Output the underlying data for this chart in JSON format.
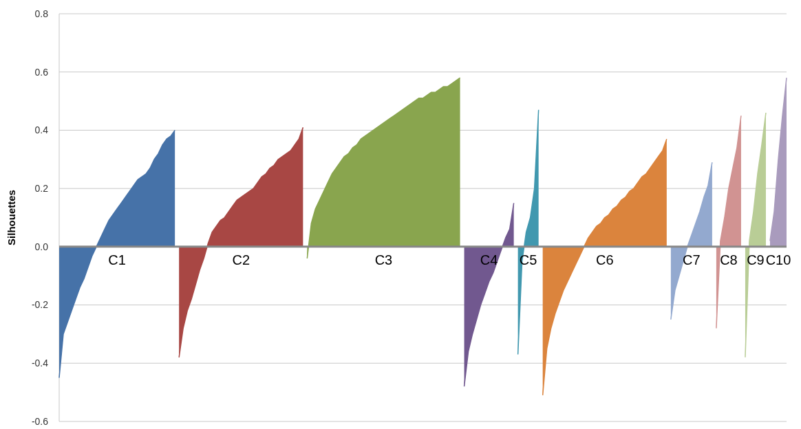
{
  "chart_data": {
    "type": "area",
    "ylabel": "Silhouettes",
    "ylim": [
      -0.6,
      0.8
    ],
    "yticks": [
      -0.6,
      -0.4,
      -0.2,
      {
        "value": 0,
        "label": "0.0"
      },
      0.2,
      0.4,
      0.6,
      0.8
    ],
    "grid": "y",
    "tick_labels": "y",
    "legend": false,
    "categories": [
      null,
      null,
      null,
      null,
      null,
      null,
      null,
      null,
      null,
      null,
      null,
      null,
      null,
      null,
      null,
      null,
      null,
      null,
      null,
      null,
      null,
      null,
      null,
      null,
      null,
      null,
      null,
      null,
      null,
      null,
      null,
      null,
      null,
      null,
      null,
      null,
      null,
      null,
      null,
      null,
      null,
      null,
      null,
      null,
      null,
      null,
      null,
      null,
      null,
      null,
      null,
      null,
      null,
      null,
      null,
      null,
      null,
      null,
      null,
      null,
      null,
      null,
      null,
      null,
      null,
      null,
      null,
      null,
      null,
      null,
      null,
      null,
      null,
      null,
      null,
      null,
      null,
      null,
      null,
      null,
      null,
      null,
      null,
      null,
      null,
      null,
      null,
      null,
      null,
      null,
      null,
      null,
      null,
      null,
      null,
      null,
      null,
      null,
      null,
      null,
      null,
      null,
      null,
      null,
      null,
      null,
      null,
      null,
      null,
      null,
      null,
      null,
      null,
      null,
      null,
      null,
      null,
      null,
      null,
      null,
      null,
      null,
      null,
      null,
      null,
      null,
      null,
      null,
      null,
      null,
      null,
      null,
      null,
      null,
      null,
      null,
      null,
      null,
      null,
      null,
      null,
      null,
      null,
      null,
      null,
      null,
      null,
      null,
      null,
      null,
      null,
      null,
      null,
      null,
      null,
      null,
      null,
      null,
      null,
      null,
      null,
      null,
      null,
      null,
      null,
      null,
      null,
      null,
      null,
      null,
      null,
      null,
      null,
      null,
      null,
      null,
      null
    ],
    "series": [
      {
        "name": "C1",
        "color": "#4672a8",
        "values": [
          -0.45,
          -0.3,
          -0.26,
          -0.22,
          -0.18,
          -0.14,
          -0.11,
          -0.07,
          -0.03,
          0.0,
          0.03,
          0.06,
          0.09,
          0.11,
          0.13,
          0.15,
          0.17,
          0.19,
          0.21,
          0.23,
          0.24,
          0.25,
          0.27,
          0.3,
          0.32,
          0.35,
          0.37,
          0.38,
          0.4,
          null,
          null,
          null,
          null,
          null,
          null,
          null,
          null,
          null,
          null,
          null,
          null,
          null,
          null,
          null,
          null,
          null,
          null,
          null,
          null,
          null,
          null,
          null,
          null,
          null,
          null,
          null,
          null,
          null,
          null,
          null,
          null,
          null,
          null,
          null,
          null,
          null,
          null,
          null,
          null,
          null,
          null,
          null,
          null,
          null,
          null,
          null,
          null,
          null,
          null,
          null,
          null,
          null,
          null,
          null,
          null,
          null,
          null,
          null,
          null,
          null,
          null,
          null,
          null,
          null,
          null,
          null,
          null,
          null,
          null,
          null,
          null,
          null,
          null,
          null,
          null,
          null,
          null,
          null,
          null,
          null,
          null,
          null,
          null,
          null,
          null,
          null,
          null,
          null,
          null,
          null,
          null,
          null,
          null,
          null,
          null,
          null,
          null,
          null,
          null,
          null,
          null,
          null,
          null,
          null,
          null,
          null,
          null,
          null,
          null,
          null,
          null,
          null,
          null,
          null,
          null,
          null,
          null,
          null,
          null,
          null,
          null,
          null,
          null,
          null,
          null,
          null,
          null,
          null,
          null,
          null,
          null,
          null,
          null,
          null,
          null,
          null,
          null,
          null,
          null,
          null,
          null,
          null,
          null,
          null,
          null,
          null,
          null
        ]
      },
      {
        "name": "C2",
        "color": "#a84744",
        "values": [
          null,
          null,
          null,
          null,
          null,
          null,
          null,
          null,
          null,
          null,
          null,
          null,
          null,
          null,
          null,
          null,
          null,
          null,
          null,
          null,
          null,
          null,
          null,
          null,
          null,
          null,
          null,
          null,
          null,
          -0.38,
          -0.28,
          -0.22,
          -0.18,
          -0.13,
          -0.08,
          -0.04,
          0.01,
          0.05,
          0.07,
          0.09,
          0.1,
          0.12,
          0.14,
          0.16,
          0.17,
          0.18,
          0.19,
          0.2,
          0.22,
          0.24,
          0.25,
          0.27,
          0.28,
          0.3,
          0.31,
          0.32,
          0.33,
          0.35,
          0.37,
          0.41,
          null,
          null,
          null,
          null,
          null,
          null,
          null,
          null,
          null,
          null,
          null,
          null,
          null,
          null,
          null,
          null,
          null,
          null,
          null,
          null,
          null,
          null,
          null,
          null,
          null,
          null,
          null,
          null,
          null,
          null,
          null,
          null,
          null,
          null,
          null,
          null,
          null,
          null,
          null,
          null,
          null,
          null,
          null,
          null,
          null,
          null,
          null,
          null,
          null,
          null,
          null,
          null,
          null,
          null,
          null,
          null,
          null,
          null,
          null,
          null,
          null,
          null,
          null,
          null,
          null,
          null,
          null,
          null,
          null,
          null,
          null,
          null,
          null,
          null,
          null,
          null,
          null,
          null,
          null,
          null,
          null,
          null,
          null,
          null,
          null,
          null,
          null,
          null,
          null,
          null,
          null,
          null,
          null,
          null,
          null,
          null,
          null,
          null,
          null,
          null,
          null,
          null,
          null,
          null,
          null,
          null,
          null,
          null,
          null,
          null,
          null,
          null,
          null,
          null,
          null,
          null,
          null
        ]
      },
      {
        "name": "C3",
        "color": "#89a54e",
        "values": [
          null,
          null,
          null,
          null,
          null,
          null,
          null,
          null,
          null,
          null,
          null,
          null,
          null,
          null,
          null,
          null,
          null,
          null,
          null,
          null,
          null,
          null,
          null,
          null,
          null,
          null,
          null,
          null,
          null,
          null,
          null,
          null,
          null,
          null,
          null,
          null,
          null,
          null,
          null,
          null,
          null,
          null,
          null,
          null,
          null,
          null,
          null,
          null,
          null,
          null,
          null,
          null,
          null,
          null,
          null,
          null,
          null,
          null,
          null,
          null,
          -0.04,
          0.08,
          0.13,
          0.16,
          0.19,
          0.22,
          0.25,
          0.27,
          0.29,
          0.31,
          0.32,
          0.34,
          0.35,
          0.37,
          0.38,
          0.39,
          0.4,
          0.41,
          0.42,
          0.43,
          0.44,
          0.45,
          0.46,
          0.47,
          0.48,
          0.49,
          0.5,
          0.51,
          0.51,
          0.52,
          0.53,
          0.53,
          0.54,
          0.55,
          0.55,
          0.56,
          0.57,
          0.58,
          null,
          null,
          null,
          null,
          null,
          null,
          null,
          null,
          null,
          null,
          null,
          null,
          null,
          null,
          null,
          null,
          null,
          null,
          null,
          null,
          null,
          null,
          null,
          null,
          null,
          null,
          null,
          null,
          null,
          null,
          null,
          null,
          null,
          null,
          null,
          null,
          null,
          null,
          null,
          null,
          null,
          null,
          null,
          null,
          null,
          null,
          null,
          null,
          null,
          null,
          null,
          null,
          null,
          null,
          null,
          null,
          null,
          null,
          null,
          null,
          null,
          null,
          null,
          null,
          null,
          null,
          null,
          null,
          null,
          null,
          null,
          null,
          null,
          null,
          null,
          null,
          null,
          null,
          null
        ]
      },
      {
        "name": "C4",
        "color": "#71588f",
        "values": [
          null,
          null,
          null,
          null,
          null,
          null,
          null,
          null,
          null,
          null,
          null,
          null,
          null,
          null,
          null,
          null,
          null,
          null,
          null,
          null,
          null,
          null,
          null,
          null,
          null,
          null,
          null,
          null,
          null,
          null,
          null,
          null,
          null,
          null,
          null,
          null,
          null,
          null,
          null,
          null,
          null,
          null,
          null,
          null,
          null,
          null,
          null,
          null,
          null,
          null,
          null,
          null,
          null,
          null,
          null,
          null,
          null,
          null,
          null,
          null,
          null,
          null,
          null,
          null,
          null,
          null,
          null,
          null,
          null,
          null,
          null,
          null,
          null,
          null,
          null,
          null,
          null,
          null,
          null,
          null,
          null,
          null,
          null,
          null,
          null,
          null,
          null,
          null,
          null,
          null,
          null,
          null,
          null,
          null,
          null,
          null,
          null,
          null,
          -0.48,
          -0.36,
          -0.3,
          -0.25,
          -0.2,
          -0.16,
          -0.12,
          -0.09,
          -0.05,
          -0.01,
          0.03,
          0.06,
          0.15,
          null,
          null,
          null,
          null,
          null,
          null,
          null,
          null,
          null,
          null,
          null,
          null,
          null,
          null,
          null,
          null,
          null,
          null,
          null,
          null,
          null,
          null,
          null,
          null,
          null,
          null,
          null,
          null,
          null,
          null,
          null,
          null,
          null,
          null,
          null,
          null,
          null,
          null,
          null,
          null,
          null,
          null,
          null,
          null,
          null,
          null,
          null,
          null,
          null,
          null,
          null,
          null,
          null,
          null,
          null,
          null,
          null,
          null,
          null,
          null,
          null,
          null,
          null,
          null,
          null,
          null
        ]
      },
      {
        "name": "C5",
        "color": "#4198af",
        "values": [
          null,
          null,
          null,
          null,
          null,
          null,
          null,
          null,
          null,
          null,
          null,
          null,
          null,
          null,
          null,
          null,
          null,
          null,
          null,
          null,
          null,
          null,
          null,
          null,
          null,
          null,
          null,
          null,
          null,
          null,
          null,
          null,
          null,
          null,
          null,
          null,
          null,
          null,
          null,
          null,
          null,
          null,
          null,
          null,
          null,
          null,
          null,
          null,
          null,
          null,
          null,
          null,
          null,
          null,
          null,
          null,
          null,
          null,
          null,
          null,
          null,
          null,
          null,
          null,
          null,
          null,
          null,
          null,
          null,
          null,
          null,
          null,
          null,
          null,
          null,
          null,
          null,
          null,
          null,
          null,
          null,
          null,
          null,
          null,
          null,
          null,
          null,
          null,
          null,
          null,
          null,
          null,
          null,
          null,
          null,
          null,
          null,
          null,
          null,
          null,
          null,
          null,
          null,
          null,
          null,
          null,
          null,
          null,
          null,
          null,
          null,
          -0.37,
          -0.05,
          0.05,
          0.1,
          0.2,
          0.47,
          null,
          null,
          null,
          null,
          null,
          null,
          null,
          null,
          null,
          null,
          null,
          null,
          null,
          null,
          null,
          null,
          null,
          null,
          null,
          null,
          null,
          null,
          null,
          null,
          null,
          null,
          null,
          null,
          null,
          null,
          null,
          null,
          null,
          null,
          null,
          null,
          null,
          null,
          null,
          null,
          null,
          null,
          null,
          null,
          null,
          null,
          null,
          null,
          null,
          null,
          null,
          null,
          null,
          null,
          null,
          null,
          null,
          null,
          null,
          null
        ]
      },
      {
        "name": "C6",
        "color": "#db843d",
        "values": [
          null,
          null,
          null,
          null,
          null,
          null,
          null,
          null,
          null,
          null,
          null,
          null,
          null,
          null,
          null,
          null,
          null,
          null,
          null,
          null,
          null,
          null,
          null,
          null,
          null,
          null,
          null,
          null,
          null,
          null,
          null,
          null,
          null,
          null,
          null,
          null,
          null,
          null,
          null,
          null,
          null,
          null,
          null,
          null,
          null,
          null,
          null,
          null,
          null,
          null,
          null,
          null,
          null,
          null,
          null,
          null,
          null,
          null,
          null,
          null,
          null,
          null,
          null,
          null,
          null,
          null,
          null,
          null,
          null,
          null,
          null,
          null,
          null,
          null,
          null,
          null,
          null,
          null,
          null,
          null,
          null,
          null,
          null,
          null,
          null,
          null,
          null,
          null,
          null,
          null,
          null,
          null,
          null,
          null,
          null,
          null,
          null,
          null,
          null,
          null,
          null,
          null,
          null,
          null,
          null,
          null,
          null,
          null,
          null,
          null,
          null,
          null,
          null,
          null,
          null,
          null,
          null,
          -0.51,
          -0.35,
          -0.28,
          -0.23,
          -0.19,
          -0.15,
          -0.12,
          -0.09,
          -0.06,
          -0.03,
          0.0,
          0.03,
          0.05,
          0.07,
          0.08,
          0.1,
          0.11,
          0.13,
          0.14,
          0.16,
          0.17,
          0.19,
          0.2,
          0.22,
          0.24,
          0.25,
          0.27,
          0.29,
          0.31,
          0.33,
          0.37,
          null,
          null,
          null,
          null,
          null,
          null,
          null,
          null,
          null,
          null,
          null,
          null,
          null,
          null,
          null,
          null,
          null,
          null,
          null,
          null,
          null,
          null,
          null,
          null,
          null,
          null,
          null,
          null,
          null
        ]
      },
      {
        "name": "C7",
        "color": "#93a9cf",
        "values": [
          null,
          null,
          null,
          null,
          null,
          null,
          null,
          null,
          null,
          null,
          null,
          null,
          null,
          null,
          null,
          null,
          null,
          null,
          null,
          null,
          null,
          null,
          null,
          null,
          null,
          null,
          null,
          null,
          null,
          null,
          null,
          null,
          null,
          null,
          null,
          null,
          null,
          null,
          null,
          null,
          null,
          null,
          null,
          null,
          null,
          null,
          null,
          null,
          null,
          null,
          null,
          null,
          null,
          null,
          null,
          null,
          null,
          null,
          null,
          null,
          null,
          null,
          null,
          null,
          null,
          null,
          null,
          null,
          null,
          null,
          null,
          null,
          null,
          null,
          null,
          null,
          null,
          null,
          null,
          null,
          null,
          null,
          null,
          null,
          null,
          null,
          null,
          null,
          null,
          null,
          null,
          null,
          null,
          null,
          null,
          null,
          null,
          null,
          null,
          null,
          null,
          null,
          null,
          null,
          null,
          null,
          null,
          null,
          null,
          null,
          null,
          null,
          null,
          null,
          null,
          null,
          null,
          null,
          null,
          null,
          null,
          null,
          null,
          null,
          null,
          null,
          null,
          null,
          null,
          null,
          null,
          null,
          null,
          null,
          null,
          null,
          null,
          null,
          null,
          null,
          null,
          null,
          null,
          null,
          null,
          null,
          null,
          null,
          -0.25,
          -0.15,
          -0.1,
          -0.05,
          0.0,
          0.04,
          0.08,
          0.12,
          0.17,
          0.21,
          0.29,
          null,
          null,
          null,
          null,
          null,
          null,
          null,
          null,
          null,
          null,
          null,
          null,
          null,
          null,
          null,
          null,
          null,
          null
        ]
      },
      {
        "name": "C8",
        "color": "#d19392",
        "values": [
          null,
          null,
          null,
          null,
          null,
          null,
          null,
          null,
          null,
          null,
          null,
          null,
          null,
          null,
          null,
          null,
          null,
          null,
          null,
          null,
          null,
          null,
          null,
          null,
          null,
          null,
          null,
          null,
          null,
          null,
          null,
          null,
          null,
          null,
          null,
          null,
          null,
          null,
          null,
          null,
          null,
          null,
          null,
          null,
          null,
          null,
          null,
          null,
          null,
          null,
          null,
          null,
          null,
          null,
          null,
          null,
          null,
          null,
          null,
          null,
          null,
          null,
          null,
          null,
          null,
          null,
          null,
          null,
          null,
          null,
          null,
          null,
          null,
          null,
          null,
          null,
          null,
          null,
          null,
          null,
          null,
          null,
          null,
          null,
          null,
          null,
          null,
          null,
          null,
          null,
          null,
          null,
          null,
          null,
          null,
          null,
          null,
          null,
          null,
          null,
          null,
          null,
          null,
          null,
          null,
          null,
          null,
          null,
          null,
          null,
          null,
          null,
          null,
          null,
          null,
          null,
          null,
          null,
          null,
          null,
          null,
          null,
          null,
          null,
          null,
          null,
          null,
          null,
          null,
          null,
          null,
          null,
          null,
          null,
          null,
          null,
          null,
          null,
          null,
          null,
          null,
          null,
          null,
          null,
          null,
          null,
          null,
          null,
          null,
          null,
          null,
          null,
          null,
          null,
          null,
          null,
          null,
          null,
          null,
          -0.28,
          0.02,
          0.1,
          0.2,
          0.27,
          0.34,
          0.45,
          null,
          null,
          null,
          null,
          null,
          null,
          null,
          null,
          null,
          null,
          null
        ]
      },
      {
        "name": "C9",
        "color": "#b9cd96",
        "values": [
          null,
          null,
          null,
          null,
          null,
          null,
          null,
          null,
          null,
          null,
          null,
          null,
          null,
          null,
          null,
          null,
          null,
          null,
          null,
          null,
          null,
          null,
          null,
          null,
          null,
          null,
          null,
          null,
          null,
          null,
          null,
          null,
          null,
          null,
          null,
          null,
          null,
          null,
          null,
          null,
          null,
          null,
          null,
          null,
          null,
          null,
          null,
          null,
          null,
          null,
          null,
          null,
          null,
          null,
          null,
          null,
          null,
          null,
          null,
          null,
          null,
          null,
          null,
          null,
          null,
          null,
          null,
          null,
          null,
          null,
          null,
          null,
          null,
          null,
          null,
          null,
          null,
          null,
          null,
          null,
          null,
          null,
          null,
          null,
          null,
          null,
          null,
          null,
          null,
          null,
          null,
          null,
          null,
          null,
          null,
          null,
          null,
          null,
          null,
          null,
          null,
          null,
          null,
          null,
          null,
          null,
          null,
          null,
          null,
          null,
          null,
          null,
          null,
          null,
          null,
          null,
          null,
          null,
          null,
          null,
          null,
          null,
          null,
          null,
          null,
          null,
          null,
          null,
          null,
          null,
          null,
          null,
          null,
          null,
          null,
          null,
          null,
          null,
          null,
          null,
          null,
          null,
          null,
          null,
          null,
          null,
          null,
          null,
          null,
          null,
          null,
          null,
          null,
          null,
          null,
          null,
          null,
          null,
          null,
          null,
          null,
          null,
          null,
          null,
          null,
          null,
          -0.38,
          0.02,
          0.12,
          0.25,
          0.35,
          0.46,
          null,
          null,
          null,
          null,
          null
        ]
      },
      {
        "name": "C10",
        "color": "#a99bbd",
        "values": [
          null,
          null,
          null,
          null,
          null,
          null,
          null,
          null,
          null,
          null,
          null,
          null,
          null,
          null,
          null,
          null,
          null,
          null,
          null,
          null,
          null,
          null,
          null,
          null,
          null,
          null,
          null,
          null,
          null,
          null,
          null,
          null,
          null,
          null,
          null,
          null,
          null,
          null,
          null,
          null,
          null,
          null,
          null,
          null,
          null,
          null,
          null,
          null,
          null,
          null,
          null,
          null,
          null,
          null,
          null,
          null,
          null,
          null,
          null,
          null,
          null,
          null,
          null,
          null,
          null,
          null,
          null,
          null,
          null,
          null,
          null,
          null,
          null,
          null,
          null,
          null,
          null,
          null,
          null,
          null,
          null,
          null,
          null,
          null,
          null,
          null,
          null,
          null,
          null,
          null,
          null,
          null,
          null,
          null,
          null,
          null,
          null,
          null,
          null,
          null,
          null,
          null,
          null,
          null,
          null,
          null,
          null,
          null,
          null,
          null,
          null,
          null,
          null,
          null,
          null,
          null,
          null,
          null,
          null,
          null,
          null,
          null,
          null,
          null,
          null,
          null,
          null,
          null,
          null,
          null,
          null,
          null,
          null,
          null,
          null,
          null,
          null,
          null,
          null,
          null,
          null,
          null,
          null,
          null,
          null,
          null,
          null,
          null,
          null,
          null,
          null,
          null,
          null,
          null,
          null,
          null,
          null,
          null,
          null,
          null,
          null,
          null,
          null,
          null,
          null,
          null,
          null,
          null,
          null,
          null,
          null,
          null,
          0.02,
          0.12,
          0.3,
          0.45,
          0.58
        ]
      }
    ]
  }
}
